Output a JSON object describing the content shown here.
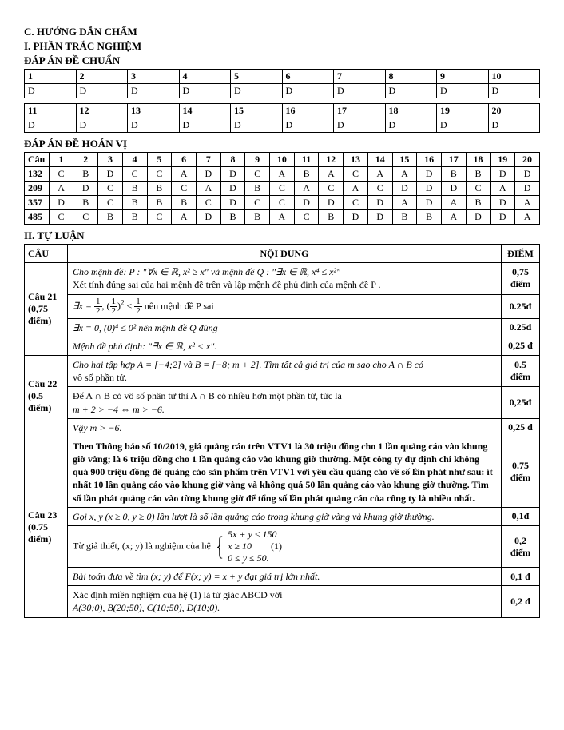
{
  "headings": {
    "h1": "C. HƯỚNG DẪN CHẤM",
    "h2": "I. PHẦN TRẮC NGHIỆM",
    "h3": "ĐÁP ÁN ĐỀ CHUẨN",
    "h4": "ĐÁP ÁN ĐỀ HOÁN VỊ",
    "h5": "II. TỰ LUẬN"
  },
  "table1_nums": [
    "1",
    "2",
    "3",
    "4",
    "5",
    "6",
    "7",
    "8",
    "9",
    "10"
  ],
  "table1_ans": [
    "D",
    "D",
    "D",
    "D",
    "D",
    "D",
    "D",
    "D",
    "D",
    "D"
  ],
  "table2_nums": [
    "11",
    "12",
    "13",
    "14",
    "15",
    "16",
    "17",
    "18",
    "19",
    "20"
  ],
  "table2_ans": [
    "D",
    "D",
    "D",
    "D",
    "D",
    "D",
    "D",
    "D",
    "D",
    "D"
  ],
  "perm_header": [
    "Câu",
    "1",
    "2",
    "3",
    "4",
    "5",
    "6",
    "7",
    "8",
    "9",
    "10",
    "11",
    "12",
    "13",
    "14",
    "15",
    "16",
    "17",
    "18",
    "19",
    "20"
  ],
  "perm_rows": [
    [
      "132",
      "C",
      "B",
      "D",
      "C",
      "C",
      "A",
      "D",
      "D",
      "C",
      "A",
      "B",
      "A",
      "C",
      "A",
      "A",
      "D",
      "B",
      "B",
      "D",
      "D"
    ],
    [
      "209",
      "A",
      "D",
      "C",
      "B",
      "B",
      "C",
      "A",
      "D",
      "B",
      "C",
      "A",
      "C",
      "A",
      "C",
      "D",
      "D",
      "D",
      "C",
      "A",
      "D"
    ],
    [
      "357",
      "D",
      "B",
      "C",
      "B",
      "B",
      "B",
      "C",
      "D",
      "C",
      "C",
      "D",
      "D",
      "C",
      "D",
      "A",
      "D",
      "A",
      "B",
      "D",
      "A"
    ],
    [
      "485",
      "C",
      "C",
      "B",
      "B",
      "C",
      "A",
      "D",
      "B",
      "B",
      "A",
      "C",
      "B",
      "D",
      "D",
      "B",
      "B",
      "A",
      "D",
      "D",
      "A"
    ]
  ],
  "sol_head": {
    "cau": "CÂU",
    "noidung": "NỘI DUNG",
    "diem": "ĐIỂM"
  },
  "q21": {
    "label": "Câu 21\n(0,75 điểm)",
    "r1": "Cho mệnh đề: P : \"∀x ∈ ℝ, x² ≥ x\" và mệnh đề Q : \"∃x ∈ ℝ, x⁴ ≤ x²\"",
    "r1b": "Xét tính đúng sai của hai mệnh đề trên và lập mệnh đề phủ định của mệnh đề P .",
    "r1pt": "0,75 điểm",
    "r2pre": "∃x = ",
    "r2mid": ", ",
    "r2tail": " nên mệnh đề P sai",
    "r2pt": "0.25đ",
    "r3": "∃x = 0, (0)⁴ ≤ 0² nên mệnh đề Q đúng",
    "r3pt": "0.25đ",
    "r4": "Mệnh đề phủ định: \"∃x ∈ ℝ, x² < x\".",
    "r4pt": "0,25 đ"
  },
  "q22": {
    "label": "Câu 22\n(0.5 điểm)",
    "r1a": "Cho hai tập hợp A = [−4;2] và B = [−8; m + 2]. Tìm tất cả giá trị của m sao cho A ∩ B có",
    "r1b": "vô số phần tử.",
    "r1pt": "0.5 điểm",
    "r2a": "Để A ∩ B có vô số phần tử thì A ∩ B có nhiều hơn một phần tử, tức là",
    "r2b": "m + 2 > −4 ⇔ m > −6.",
    "r2pt": "0,25đ",
    "r3": "Vậy m > −6.",
    "r3pt": "0,25 đ"
  },
  "q23": {
    "label": "Câu 23\n(0.75 điểm)",
    "r1": "Theo Thông báo số 10/2019, giá quảng cáo trên VTV1 là 30 triệu đồng cho 1 lần quảng cáo vào khung giờ vàng; là 6 triệu đồng cho 1 lần quảng cáo vào khung giờ thường. Một công ty dự định chi không quá 900 triệu đồng để quảng cáo sản phẩm trên VTV1 với yêu cầu quảng cáo về số lần phát như sau: ít nhất 10 lần quảng cáo vào khung giờ vàng và không quá 50 lần quảng cáo vào khung giờ thường. Tìm số lần phát quảng cáo vào từng khung giờ để tổng số lần phát quảng cáo của công ty là nhiều nhất.",
    "r1pt": "0.75 điểm",
    "r2": "Gọi x, y (x ≥ 0, y ≥ 0) lần lượt là số lần quảng cáo trong khung giờ vàng và khung giờ thường.",
    "r2pt": "0,1đ",
    "r3a": "Từ giả thiết, (x; y) là nghiệm của hệ",
    "r3b1": "5x + y ≤ 150",
    "r3b2": "x ≥ 10",
    "r3b3": "0 ≤ y ≤ 50.",
    "r3num": "(1)",
    "r3pt": "0,2 điểm",
    "r4": "Bài toán đưa về tìm (x; y) để F(x; y) = x + y đạt giá trị lớn nhất.",
    "r4pt": "0,1 đ",
    "r5a": "Xác định miền nghiệm của hệ (1) là tứ giác ABCD với",
    "r5b": "A(30;0), B(20;50), C(10;50), D(10;0).",
    "r5pt": "0,2 đ"
  }
}
